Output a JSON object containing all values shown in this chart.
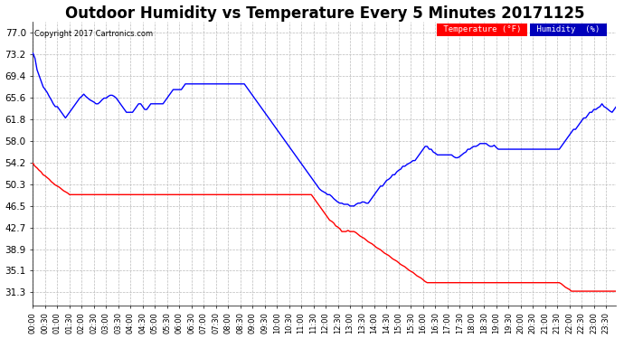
{
  "title": "Outdoor Humidity vs Temperature Every 5 Minutes 20171125",
  "copyright_text": "Copyright 2017 Cartronics.com",
  "legend_temp_label": "Temperature (°F)",
  "legend_hum_label": "Humidity  (%)",
  "temp_color": "#0000ff",
  "hum_color": "#ff0000",
  "legend_temp_bg": "#ff0000",
  "legend_hum_bg": "#0000bb",
  "background_color": "#ffffff",
  "grid_color": "#bbbbbb",
  "y_ticks": [
    31.3,
    35.1,
    38.9,
    42.7,
    46.5,
    50.3,
    54.2,
    58.0,
    61.8,
    65.6,
    69.4,
    73.2,
    77.0
  ],
  "ylim_min": 29.0,
  "ylim_max": 79.0,
  "title_fontsize": 12,
  "temp_profile": [
    73.4,
    72.5,
    70.5,
    69.5,
    68.5,
    67.5,
    67.0,
    66.5,
    65.8,
    65.2,
    64.5,
    64.0,
    64.0,
    63.5,
    63.0,
    62.5,
    62.0,
    62.5,
    63.0,
    63.5,
    64.0,
    64.5,
    65.0,
    65.5,
    65.8,
    66.2,
    65.8,
    65.5,
    65.2,
    65.0,
    64.8,
    64.5,
    64.5,
    64.8,
    65.2,
    65.5,
    65.5,
    65.8,
    66.0,
    66.0,
    65.8,
    65.5,
    65.0,
    64.5,
    64.0,
    63.5,
    63.0,
    63.0,
    63.0,
    63.0,
    63.5,
    64.0,
    64.5,
    64.5,
    64.0,
    63.5,
    63.5,
    64.0,
    64.5,
    64.5,
    64.5,
    64.5,
    64.5,
    64.5,
    64.5,
    65.0,
    65.5,
    66.0,
    66.5,
    67.0,
    67.0,
    67.0,
    67.0,
    67.0,
    67.5,
    68.0,
    68.0,
    68.0,
    68.0,
    68.0,
    68.0,
    68.0,
    68.0,
    68.0,
    68.0,
    68.0,
    68.0,
    68.0,
    68.0,
    68.0,
    68.0,
    68.0,
    68.0,
    68.0,
    68.0,
    68.0,
    68.0,
    68.0,
    68.0,
    68.0,
    68.0,
    68.0,
    68.0,
    68.0,
    68.0,
    67.5,
    67.0,
    66.5,
    66.0,
    65.5,
    65.0,
    64.5,
    64.0,
    63.5,
    63.0,
    62.5,
    62.0,
    61.5,
    61.0,
    60.5,
    60.0,
    59.5,
    59.0,
    58.5,
    58.0,
    57.5,
    57.0,
    56.5,
    56.0,
    55.5,
    55.0,
    54.5,
    54.0,
    53.5,
    53.0,
    52.5,
    52.0,
    51.5,
    51.0,
    50.5,
    50.0,
    49.5,
    49.2,
    49.0,
    48.8,
    48.5,
    48.5,
    48.2,
    47.8,
    47.5,
    47.2,
    47.0,
    47.0,
    46.8,
    46.8,
    46.8,
    46.5,
    46.5,
    46.5,
    46.8,
    47.0,
    47.0,
    47.2,
    47.2,
    47.0,
    47.0,
    47.5,
    48.0,
    48.5,
    49.0,
    49.5,
    50.0,
    50.0,
    50.5,
    51.0,
    51.2,
    51.5,
    52.0,
    52.0,
    52.5,
    52.8,
    53.0,
    53.5,
    53.5,
    53.8,
    54.0,
    54.2,
    54.5,
    54.5,
    55.0,
    55.5,
    56.0,
    56.5,
    57.0,
    57.0,
    56.5,
    56.5,
    56.0,
    55.8,
    55.5,
    55.5,
    55.5,
    55.5,
    55.5,
    55.5,
    55.5,
    55.5,
    55.2,
    55.0,
    55.0,
    55.2,
    55.5,
    55.8,
    56.0,
    56.5,
    56.5,
    56.8,
    57.0,
    57.0,
    57.2,
    57.5,
    57.5,
    57.5,
    57.5,
    57.2,
    57.0,
    57.0,
    57.2,
    56.8,
    56.5,
    56.5,
    56.5,
    56.5,
    56.5,
    56.5,
    56.5,
    56.5,
    56.5,
    56.5,
    56.5,
    56.5,
    56.5,
    56.5,
    56.5,
    56.5,
    56.5,
    56.5,
    56.5,
    56.5,
    56.5,
    56.5,
    56.5,
    56.5,
    56.5,
    56.5,
    56.5,
    56.5,
    56.5,
    56.5,
    56.5,
    57.0,
    57.5,
    58.0,
    58.5,
    59.0,
    59.5,
    60.0,
    60.0,
    60.5,
    61.0,
    61.5,
    62.0,
    62.0,
    62.5,
    63.0,
    63.0,
    63.5,
    63.5,
    63.8,
    64.0,
    64.5,
    64.0,
    63.8,
    63.5,
    63.2,
    63.0,
    63.5,
    64.0,
    64.5,
    65.0,
    65.0
  ],
  "hum_profile": [
    54.0,
    53.5,
    53.2,
    52.8,
    52.5,
    52.0,
    51.8,
    51.5,
    51.2,
    50.8,
    50.5,
    50.2,
    50.0,
    49.8,
    49.5,
    49.2,
    49.0,
    48.8,
    48.5,
    48.5,
    48.5,
    48.5,
    48.5,
    48.5,
    48.5,
    48.5,
    48.5,
    48.5,
    48.5,
    48.5,
    48.5,
    48.5,
    48.5,
    48.5,
    48.5,
    48.5,
    48.5,
    48.5,
    48.5,
    48.5,
    48.5,
    48.5,
    48.5,
    48.5,
    48.5,
    48.5,
    48.5,
    48.5,
    48.5,
    48.5,
    48.5,
    48.5,
    48.5,
    48.5,
    48.5,
    48.5,
    48.5,
    48.5,
    48.5,
    48.5,
    48.5,
    48.5,
    48.5,
    48.5,
    48.5,
    48.5,
    48.5,
    48.5,
    48.5,
    48.5,
    48.5,
    48.5,
    48.5,
    48.5,
    48.5,
    48.5,
    48.5,
    48.5,
    48.5,
    48.5,
    48.5,
    48.5,
    48.5,
    48.5,
    48.5,
    48.5,
    48.5,
    48.5,
    48.5,
    48.5,
    48.5,
    48.5,
    48.5,
    48.5,
    48.5,
    48.5,
    48.5,
    48.5,
    48.5,
    48.5,
    48.5,
    48.5,
    48.5,
    48.5,
    48.5,
    48.5,
    48.5,
    48.5,
    48.5,
    48.5,
    48.5,
    48.5,
    48.5,
    48.5,
    48.5,
    48.5,
    48.5,
    48.5,
    48.5,
    48.5,
    48.5,
    48.5,
    48.5,
    48.5,
    48.5,
    48.5,
    48.5,
    48.5,
    48.5,
    48.5,
    48.5,
    48.5,
    48.5,
    48.5,
    48.5,
    48.5,
    48.5,
    48.5,
    48.0,
    47.5,
    47.0,
    46.5,
    46.0,
    45.5,
    45.0,
    44.5,
    44.0,
    43.8,
    43.5,
    43.0,
    42.8,
    42.5,
    42.0,
    42.0,
    42.0,
    42.2,
    42.0,
    42.0,
    42.0,
    41.8,
    41.5,
    41.2,
    41.0,
    40.8,
    40.5,
    40.2,
    40.0,
    39.8,
    39.5,
    39.2,
    39.0,
    38.8,
    38.5,
    38.2,
    38.0,
    37.8,
    37.5,
    37.2,
    37.0,
    36.8,
    36.5,
    36.2,
    36.0,
    35.8,
    35.5,
    35.2,
    35.0,
    34.8,
    34.5,
    34.2,
    34.0,
    33.8,
    33.5,
    33.2,
    33.0,
    33.0,
    33.0,
    33.0,
    33.0,
    33.0,
    33.0,
    33.0,
    33.0,
    33.0,
    33.0,
    33.0,
    33.0,
    33.0,
    33.0,
    33.0,
    33.0,
    33.0,
    33.0,
    33.0,
    33.0,
    33.0,
    33.0,
    33.0,
    33.0,
    33.0,
    33.0,
    33.0,
    33.0,
    33.0,
    33.0,
    33.0,
    33.0,
    33.0,
    33.0,
    33.0,
    33.0,
    33.0,
    33.0,
    33.0,
    33.0,
    33.0,
    33.0,
    33.0,
    33.0,
    33.0,
    33.0,
    33.0,
    33.0,
    33.0,
    33.0,
    33.0,
    33.0,
    33.0,
    33.0,
    33.0,
    33.0,
    33.0,
    33.0,
    33.0,
    33.0,
    33.0,
    33.0,
    33.0,
    33.0,
    33.0,
    32.8,
    32.5,
    32.2,
    32.0,
    31.8,
    31.5,
    31.5,
    31.5,
    31.5,
    31.5,
    31.5,
    31.5,
    31.5,
    31.5,
    31.5,
    31.5,
    31.5,
    31.5,
    31.5,
    31.5,
    31.5,
    31.5,
    31.5,
    31.5,
    31.5,
    31.5,
    31.5,
    31.5,
    31.5,
    31.5,
    31.3
  ]
}
